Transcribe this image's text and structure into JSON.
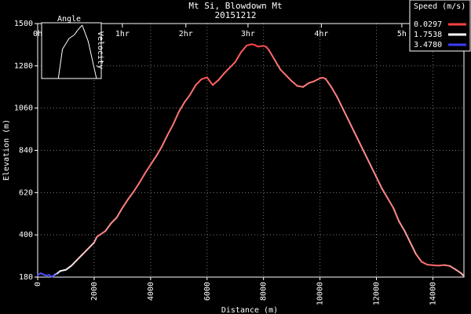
{
  "chart_data": {
    "type": "line",
    "title": "Mt Si, Blowdown Mt",
    "subtitle": "20151212",
    "xlabel": "Distance (m)",
    "ylabel": "Elevation (m)",
    "xlim": [
      0,
      15100
    ],
    "ylim": [
      180,
      1500
    ],
    "x_ticks": [
      "0",
      "2000",
      "4000",
      "6000",
      "8000",
      "10000",
      "12000",
      "14000"
    ],
    "y_ticks": [
      "180",
      "400",
      "620",
      "840",
      "1060",
      "1280",
      "1500"
    ],
    "time_ticks": [
      "0h",
      "1hr",
      "2hr",
      "3hr",
      "4hr",
      "5h"
    ],
    "time_tick_positions_m": [
      0,
      3000,
      5250,
      7450,
      10050,
      12900
    ],
    "grid": true,
    "legend": {
      "title": "Speed (m/s)",
      "placement": "top-right",
      "entries": [
        {
          "label": "0.0297",
          "color": "#ff4040"
        },
        {
          "label": "1.7538",
          "color": "#ffffff"
        },
        {
          "label": "3.4780",
          "color": "#3c3cff"
        }
      ]
    },
    "series": [
      {
        "x": [
          0,
          100,
          300,
          400,
          500,
          600,
          700,
          800,
          900,
          1000,
          1200,
          1400,
          1600,
          1800,
          2000,
          2100,
          2200,
          2400,
          2600,
          2800,
          3000,
          3200,
          3400,
          3600,
          3800,
          4000,
          4200,
          4400,
          4600,
          4800,
          5000,
          5200,
          5400,
          5600,
          5800,
          6000,
          6200,
          6400,
          6600,
          6800,
          7000,
          7200,
          7400,
          7500,
          7600,
          7700,
          7800,
          7900,
          8000,
          8100,
          8200,
          8400,
          8600,
          8800,
          9000,
          9200,
          9400,
          9600,
          9800,
          10000,
          10100,
          10200,
          10400,
          10600,
          10800,
          11000,
          11200,
          11400,
          11600,
          11800,
          12000,
          12200,
          12400,
          12600,
          12800,
          13000,
          13200,
          13400,
          13600,
          13800,
          14000,
          14200,
          14400,
          14600,
          14800,
          15000,
          15100
        ],
        "y": [
          190,
          200,
          188,
          192,
          182,
          192,
          200,
          212,
          215,
          218,
          240,
          270,
          300,
          330,
          360,
          390,
          400,
          420,
          460,
          490,
          540,
          585,
          625,
          670,
          720,
          765,
          810,
          860,
          920,
          975,
          1040,
          1090,
          1130,
          1180,
          1210,
          1220,
          1180,
          1205,
          1240,
          1270,
          1300,
          1350,
          1385,
          1390,
          1392,
          1388,
          1380,
          1382,
          1384,
          1378,
          1360,
          1310,
          1260,
          1230,
          1200,
          1175,
          1170,
          1190,
          1200,
          1215,
          1218,
          1212,
          1170,
          1120,
          1060,
          1000,
          940,
          880,
          820,
          760,
          700,
          640,
          590,
          540,
          470,
          420,
          360,
          300,
          260,
          245,
          242,
          240,
          243,
          238,
          220,
          200,
          185
        ],
        "speed": [
          3.4,
          3.3,
          3.3,
          3.4,
          3.4,
          3.3,
          2.1,
          1.8,
          1.8,
          1.7,
          1.5,
          1.4,
          1.2,
          1.1,
          1.2,
          0.6,
          0.5,
          0.7,
          0.8,
          0.7,
          0.6,
          0.6,
          0.6,
          0.5,
          0.5,
          0.5,
          0.5,
          0.6,
          0.5,
          0.5,
          0.5,
          0.5,
          0.5,
          0.4,
          0.3,
          0.2,
          0.3,
          0.4,
          0.4,
          0.4,
          0.3,
          0.3,
          0.2,
          0.1,
          0.1,
          0.1,
          0.1,
          0.1,
          0.1,
          0.2,
          0.3,
          0.5,
          0.5,
          0.5,
          0.5,
          0.5,
          0.6,
          0.6,
          0.5,
          0.5,
          0.5,
          0.5,
          0.6,
          0.6,
          0.7,
          0.7,
          0.7,
          0.7,
          0.7,
          0.7,
          0.7,
          0.7,
          0.6,
          0.6,
          0.8,
          0.8,
          0.9,
          0.8,
          0.5,
          0.4,
          0.4,
          0.4,
          0.4,
          0.8,
          0.8,
          1.0,
          1.2
        ]
      }
    ],
    "inset": {
      "title": "Angle",
      "ylabel": "Velocity",
      "series": [
        {
          "x": [
            0.28,
            0.35,
            0.46,
            0.55,
            0.6,
            0.68,
            0.78,
            0.92
          ],
          "y": [
            0.0,
            0.55,
            0.75,
            0.82,
            0.9,
            1.0,
            0.7,
            0.0
          ]
        }
      ]
    }
  }
}
